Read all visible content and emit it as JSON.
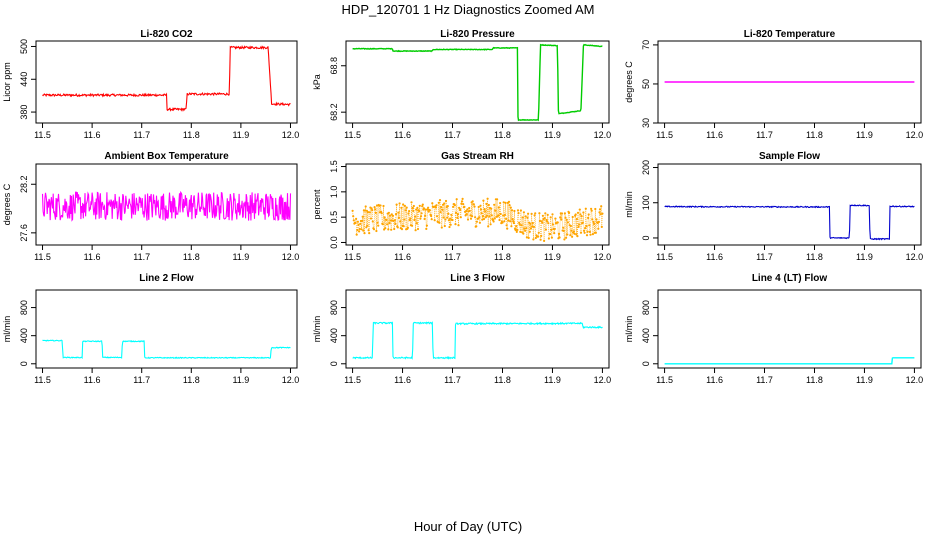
{
  "figure": {
    "title": "HDP_120701  1 Hz Diagnostics Zoomed AM",
    "xlabel": "Hour of Day (UTC)"
  },
  "chart_data": [
    {
      "type": "line",
      "title": "Li-820 CO2",
      "ylabel": "Licor ppm",
      "color": "#ff0000",
      "xlim": [
        11.5,
        12.0
      ],
      "ylim": [
        360,
        510
      ],
      "xticks": [
        "11.5",
        "11.6",
        "11.7",
        "11.8",
        "11.9",
        "12.0"
      ],
      "yticks": [
        "380",
        "440",
        "500"
      ],
      "noise": 2,
      "points": [
        [
          11.5,
          411
        ],
        [
          11.75,
          411
        ],
        [
          11.751,
          385
        ],
        [
          11.79,
          385
        ],
        [
          11.791,
          413
        ],
        [
          11.877,
          413
        ],
        [
          11.878,
          498
        ],
        [
          11.955,
          498
        ],
        [
          11.962,
          395
        ],
        [
          12.0,
          394
        ]
      ]
    },
    {
      "type": "line",
      "title": "Li-820 Pressure",
      "ylabel": "kPa",
      "color": "#00cc00",
      "xlim": [
        11.5,
        12.0
      ],
      "ylim": [
        68.06,
        69.12
      ],
      "xticks": [
        "11.5",
        "11.6",
        "11.7",
        "11.8",
        "11.9",
        "12.0"
      ],
      "yticks": [
        "68.2",
        "68.8"
      ],
      "noise": 0.004,
      "points": [
        [
          11.5,
          69.02
        ],
        [
          11.58,
          69.02
        ],
        [
          11.581,
          68.99
        ],
        [
          11.66,
          68.99
        ],
        [
          11.661,
          69.01
        ],
        [
          11.78,
          69.01
        ],
        [
          11.781,
          69.03
        ],
        [
          11.83,
          69.03
        ],
        [
          11.831,
          68.1
        ],
        [
          11.872,
          68.1
        ],
        [
          11.876,
          69.07
        ],
        [
          11.91,
          69.06
        ],
        [
          11.912,
          68.18
        ],
        [
          11.957,
          68.22
        ],
        [
          11.962,
          69.07
        ],
        [
          12.0,
          69.05
        ]
      ]
    },
    {
      "type": "line",
      "title": "Li-820 Temperature",
      "ylabel": "degrees C",
      "color": "#ff00ff",
      "xlim": [
        11.5,
        12.0
      ],
      "ylim": [
        30,
        72
      ],
      "xticks": [
        "11.5",
        "11.6",
        "11.7",
        "11.8",
        "11.9",
        "12.0"
      ],
      "yticks": [
        "30",
        "50",
        "70"
      ],
      "noise": 0,
      "points": [
        [
          11.5,
          51
        ],
        [
          12.0,
          51
        ]
      ]
    },
    {
      "type": "line",
      "title": "Ambient Box Temperature",
      "ylabel": "degrees C",
      "color": "#ff00ff",
      "xlim": [
        11.5,
        12.0
      ],
      "ylim": [
        27.45,
        28.45
      ],
      "xticks": [
        "11.5",
        "11.6",
        "11.7",
        "11.8",
        "11.9",
        "12.0"
      ],
      "yticks": [
        "27.6",
        "28.2"
      ],
      "noise": 0.18,
      "points": [
        [
          11.5,
          27.93
        ],
        [
          12.0,
          27.93
        ]
      ]
    },
    {
      "type": "scatter",
      "title": "Gas Stream RH",
      "ylabel": "percent",
      "color": "#ffa500",
      "xlim": [
        11.5,
        12.0
      ],
      "ylim": [
        -0.05,
        1.55
      ],
      "xticks": [
        "11.5",
        "11.6",
        "11.7",
        "11.8",
        "11.9",
        "12.0"
      ],
      "yticks": [
        "0.0",
        "0.5",
        "1.0",
        "1.5"
      ],
      "noise": 0.28,
      "points": [
        [
          11.5,
          0.42
        ],
        [
          11.7,
          0.58
        ],
        [
          11.8,
          0.6
        ],
        [
          11.85,
          0.35
        ],
        [
          11.9,
          0.28
        ],
        [
          12.0,
          0.48
        ]
      ]
    },
    {
      "type": "line",
      "title": "Sample Flow",
      "ylabel": "ml/min",
      "color": "#0000cc",
      "xlim": [
        11.5,
        12.0
      ],
      "ylim": [
        -20,
        210
      ],
      "xticks": [
        "11.5",
        "11.6",
        "11.7",
        "11.8",
        "11.9",
        "12.0"
      ],
      "yticks": [
        "0",
        "100",
        "200"
      ],
      "noise": 1.5,
      "points": [
        [
          11.5,
          89
        ],
        [
          11.83,
          88
        ],
        [
          11.831,
          0
        ],
        [
          11.87,
          0
        ],
        [
          11.871,
          93
        ],
        [
          11.91,
          92
        ],
        [
          11.911,
          -3
        ],
        [
          11.95,
          -3
        ],
        [
          11.951,
          90
        ],
        [
          12.0,
          89
        ]
      ]
    },
    {
      "type": "line",
      "title": "Line 2 Flow",
      "ylabel": "ml/min",
      "color": "#00ffff",
      "xlim": [
        11.5,
        12.0
      ],
      "ylim": [
        -60,
        1050
      ],
      "xticks": [
        "11.5",
        "11.6",
        "11.7",
        "11.8",
        "11.9",
        "12.0"
      ],
      "yticks": [
        "0",
        "400",
        "800"
      ],
      "noise": 6,
      "points": [
        [
          11.5,
          330
        ],
        [
          11.54,
          330
        ],
        [
          11.541,
          90
        ],
        [
          11.58,
          90
        ],
        [
          11.581,
          320
        ],
        [
          11.62,
          320
        ],
        [
          11.621,
          90
        ],
        [
          11.66,
          90
        ],
        [
          11.661,
          320
        ],
        [
          11.705,
          320
        ],
        [
          11.706,
          85
        ],
        [
          11.96,
          85
        ],
        [
          11.961,
          230
        ],
        [
          12.0,
          230
        ]
      ]
    },
    {
      "type": "line",
      "title": "Line 3 Flow",
      "ylabel": "ml/min",
      "color": "#00ffff",
      "xlim": [
        11.5,
        12.0
      ],
      "ylim": [
        -60,
        1050
      ],
      "xticks": [
        "11.5",
        "11.6",
        "11.7",
        "11.8",
        "11.9",
        "12.0"
      ],
      "yticks": [
        "0",
        "400",
        "800"
      ],
      "noise": 10,
      "points": [
        [
          11.5,
          85
        ],
        [
          11.54,
          85
        ],
        [
          11.541,
          580
        ],
        [
          11.58,
          580
        ],
        [
          11.581,
          85
        ],
        [
          11.62,
          85
        ],
        [
          11.621,
          580
        ],
        [
          11.66,
          580
        ],
        [
          11.661,
          85
        ],
        [
          11.705,
          85
        ],
        [
          11.706,
          570
        ],
        [
          11.96,
          575
        ],
        [
          11.961,
          520
        ],
        [
          12.0,
          520
        ]
      ]
    },
    {
      "type": "line",
      "title": "Line 4 (LT) Flow",
      "ylabel": "ml/min",
      "color": "#00ffff",
      "xlim": [
        11.5,
        12.0
      ],
      "ylim": [
        -60,
        1050
      ],
      "xticks": [
        "11.5",
        "11.6",
        "11.7",
        "11.8",
        "11.9",
        "12.0"
      ],
      "yticks": [
        "0",
        "400",
        "800"
      ],
      "noise": 0,
      "points": [
        [
          11.5,
          0
        ],
        [
          11.955,
          0
        ],
        [
          11.956,
          85
        ],
        [
          12.0,
          85
        ]
      ]
    }
  ]
}
